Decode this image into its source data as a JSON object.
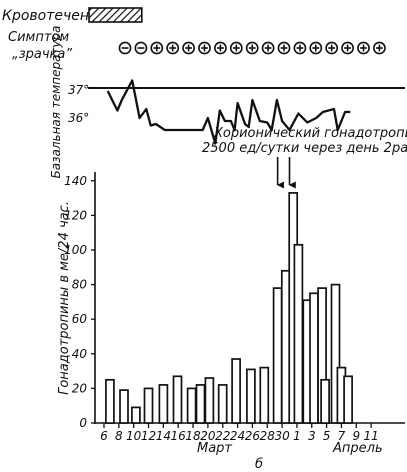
{
  "labels": {
    "bleeding": "Кровотечение",
    "pupil_line1": "Симптом",
    "pupil_line2": "„зрачка”",
    "bbt_axis": "Базальная температура",
    "temp_37": "37°",
    "temp_36": "36°",
    "hcg_line1": "Хорионический гонадотропин",
    "hcg_line2": "2500 ед/сутки через день 2раза",
    "month_march": "Март",
    "month_april": "Апрель",
    "panel_letter": "б"
  },
  "pupil_signs": [
    "−",
    "−",
    "+",
    "+",
    "+",
    "+",
    "+",
    "+",
    "+",
    "+",
    "+",
    "+",
    "+",
    "+",
    "+",
    "+",
    "+"
  ],
  "chart_data": {
    "type": "bar",
    "ylabel": "Гонадотропины в ме/24 час.",
    "ylim": [
      0,
      140
    ],
    "yticks": [
      0,
      20,
      40,
      60,
      80,
      100,
      120,
      140
    ],
    "x_ticks": [
      "6",
      "8",
      "10",
      "12",
      "14",
      "16",
      "18",
      "20",
      "22",
      "24",
      "26",
      "28",
      "30",
      "1",
      "3",
      "5",
      "7",
      "9",
      "11"
    ],
    "bar_x": [
      6.8,
      8.7,
      10.3,
      12.0,
      14.0,
      15.9,
      17.8,
      19.0,
      20.2,
      22.0,
      23.8,
      25.8,
      27.6,
      29.4,
      30.5,
      31.5,
      32.2,
      33.4,
      34.3,
      35.4,
      35.8,
      37.2,
      38.0,
      38.9
    ],
    "values": [
      25,
      19,
      9,
      20,
      22,
      27,
      20,
      22,
      26,
      22,
      37,
      31,
      32,
      78,
      88,
      133,
      103,
      71,
      75,
      78,
      25,
      80,
      32,
      27
    ],
    "bbt": {
      "ref_line": 37,
      "x": [
        6.5,
        7.8,
        8.4,
        9.8,
        10.8,
        11.7,
        12.3,
        13.0,
        14.2,
        15.5,
        16.0,
        17.0,
        18.0,
        19.3,
        20.0,
        21.0,
        21.6,
        22.3,
        23.1,
        23.6,
        24.0,
        25.0,
        25.5,
        26.0,
        27.0,
        28.0,
        28.6,
        29.3,
        30.0,
        31.0,
        32.2,
        33.4,
        34.6,
        35.5,
        37.0,
        37.5,
        38.5,
        39.2
      ],
      "values": [
        36.98,
        36.85,
        36.92,
        37.05,
        36.8,
        36.86,
        36.75,
        36.76,
        36.72,
        36.72,
        36.72,
        36.72,
        36.72,
        36.72,
        36.8,
        36.63,
        36.85,
        36.78,
        36.78,
        36.72,
        36.9,
        36.76,
        36.74,
        36.92,
        36.78,
        36.77,
        36.72,
        36.92,
        36.78,
        36.72,
        36.83,
        36.77,
        36.8,
        36.84,
        36.86,
        36.72,
        36.84,
        36.84
      ]
    },
    "hcg_arrows_x": [
      29.4,
      31.0
    ],
    "bleeding_until_x": 11.1
  }
}
